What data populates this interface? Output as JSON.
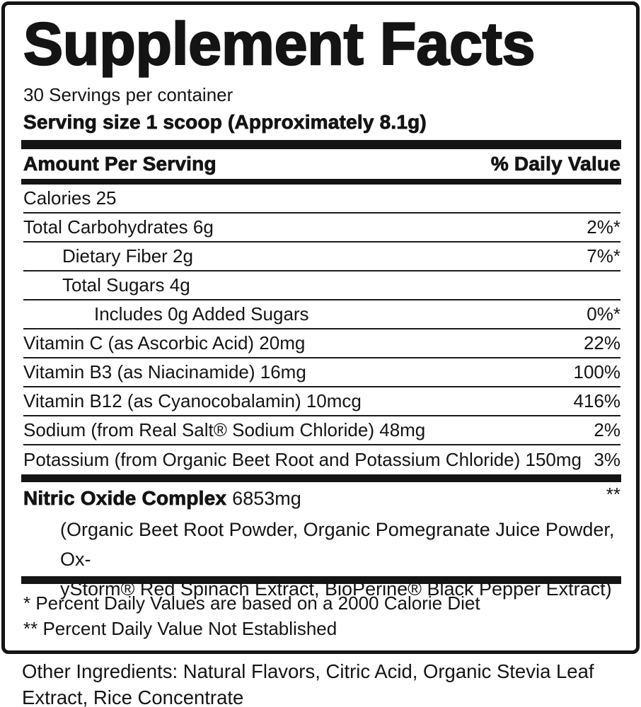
{
  "label": {
    "title": "Supplement Facts",
    "servings_per_container": "30 Servings per container",
    "serving_size": "Serving size 1 scoop (Approximately 8.1g)",
    "columns": {
      "amount_header": "Amount Per Serving",
      "daily_value_header": "% Daily Value"
    },
    "rows": [
      {
        "name": "Calories 25",
        "dv": "",
        "indent": 0
      },
      {
        "name": "Total Carbohydrates 6g",
        "dv": "2%*",
        "indent": 0
      },
      {
        "name": "Dietary Fiber 2g",
        "dv": "7%*",
        "indent": 1
      },
      {
        "name": "Total Sugars 4g",
        "dv": "",
        "indent": 1
      },
      {
        "name": "Includes 0g Added Sugars",
        "dv": "0%*",
        "indent": 2
      },
      {
        "name": "Vitamin C (as Ascorbic Acid) 20mg",
        "dv": "22%",
        "indent": 0
      },
      {
        "name": "Vitamin B3 (as Niacinamide) 16mg",
        "dv": "100%",
        "indent": 0
      },
      {
        "name": "Vitamin B12 (as Cyanocobalamin) 10mcg",
        "dv": "416%",
        "indent": 0
      },
      {
        "name": "Sodium (from Real Salt® Sodium Chloride) 48mg",
        "dv": "2%",
        "indent": 0
      },
      {
        "name": "Potassium (from Organic Beet Root and Potassium Chloride) 150mg",
        "dv": "3%",
        "indent": 0
      }
    ],
    "complex": {
      "name": "Nitric Oxide Complex",
      "amount": "6853mg",
      "dv": "**",
      "ingredients_line1": "(Organic Beet Root Powder, Organic Pomegranate Juice Powder, Ox-",
      "ingredients_line2": "yStorm® Red Spinach Extract, BioPerine® Black Pepper Extract)"
    },
    "footnotes": {
      "line1": "* Percent Daily Values are based on a 2000 Calorie Diet",
      "line2": "** Percent Daily Value Not Established"
    },
    "other_ingredients": {
      "line1": "Other Ingredients: Natural Flavors, Citric Acid, Organic Stevia Leaf",
      "line2": "Extract, Rice Concentrate"
    }
  },
  "colors": {
    "ink": "#141414",
    "background": "#ffffff"
  }
}
